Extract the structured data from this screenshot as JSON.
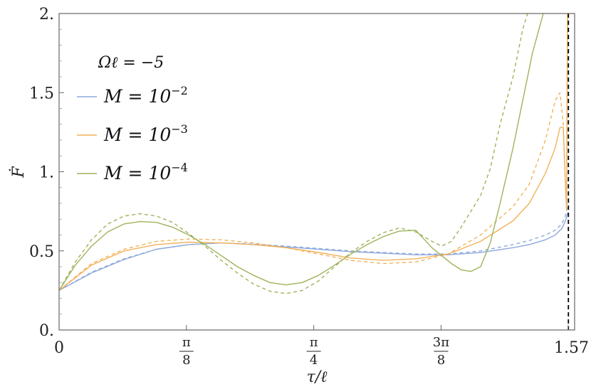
{
  "chart_data": {
    "type": "line",
    "xlabel": "τ/ℓ",
    "ylabel": "Ḟ",
    "xlim": [
      0,
      1.59
    ],
    "ylim": [
      0,
      2
    ],
    "xticks": [
      {
        "value": 0,
        "label": "0"
      },
      {
        "value": 0.3927,
        "label": "π/8",
        "num": "π",
        "den": "8"
      },
      {
        "value": 0.7854,
        "label": "π/4",
        "num": "π",
        "den": "4"
      },
      {
        "value": 1.1781,
        "label": "3π/8",
        "num": "3π",
        "den": "8"
      },
      {
        "value": 1.57,
        "label": "1.57"
      }
    ],
    "yticks": [
      {
        "value": 0,
        "label": "0."
      },
      {
        "value": 0.5,
        "label": "0.5"
      },
      {
        "value": 1,
        "label": "1."
      },
      {
        "value": 1.5,
        "label": "1.5"
      },
      {
        "value": 2,
        "label": "2."
      }
    ],
    "asymptote_x": 1.5708,
    "legend": {
      "title": "Ωℓ = −5",
      "placement": "top-left",
      "entries": [
        {
          "label": "M = 10⁻²",
          "base": "M = 10",
          "exp": "−2",
          "color": "#8FAADC"
        },
        {
          "label": "M = 10⁻³",
          "base": "M = 10",
          "exp": "−3",
          "color": "#F2B25C"
        },
        {
          "label": "M = 10⁻⁴",
          "base": "M = 10",
          "exp": "−4",
          "color": "#9DB35A"
        }
      ]
    },
    "series": [
      {
        "name": "M = 10⁻²",
        "style": "solid",
        "color": "#8FAADC",
        "x": [
          0,
          0.1,
          0.2,
          0.3,
          0.4,
          0.5,
          0.6,
          0.7,
          0.8,
          0.9,
          1.0,
          1.1,
          1.2,
          1.3,
          1.4,
          1.45,
          1.5,
          1.53,
          1.55,
          1.56,
          1.565,
          1.568
        ],
        "y": [
          0.25,
          0.36,
          0.445,
          0.51,
          0.54,
          0.55,
          0.54,
          0.525,
          0.51,
          0.495,
          0.485,
          0.475,
          0.475,
          0.49,
          0.52,
          0.54,
          0.57,
          0.6,
          0.64,
          0.68,
          0.71,
          0.74
        ]
      },
      {
        "name": "M = 10⁻² (dashed)",
        "style": "dashed",
        "color": "#8FAADC",
        "x": [
          0,
          0.1,
          0.2,
          0.3,
          0.4,
          0.5,
          0.6,
          0.7,
          0.8,
          0.9,
          1.0,
          1.1,
          1.2,
          1.3,
          1.4,
          1.45,
          1.5,
          1.53,
          1.55,
          1.56,
          1.565,
          1.568
        ],
        "y": [
          0.25,
          0.365,
          0.45,
          0.51,
          0.54,
          0.55,
          0.543,
          0.53,
          0.515,
          0.5,
          0.49,
          0.48,
          0.48,
          0.5,
          0.54,
          0.565,
          0.6,
          0.63,
          0.67,
          0.71,
          0.75,
          0.8
        ]
      },
      {
        "name": "M = 10⁻³",
        "style": "solid",
        "color": "#F2B25C",
        "x": [
          0,
          0.1,
          0.2,
          0.3,
          0.4,
          0.5,
          0.6,
          0.7,
          0.8,
          0.9,
          1.0,
          1.1,
          1.2,
          1.3,
          1.4,
          1.45,
          1.5,
          1.53,
          1.545,
          1.555,
          1.56,
          1.565,
          1.568
        ],
        "y": [
          0.25,
          0.41,
          0.5,
          0.54,
          0.555,
          0.55,
          0.54,
          0.52,
          0.49,
          0.455,
          0.44,
          0.45,
          0.48,
          0.56,
          0.69,
          0.8,
          0.99,
          1.15,
          1.28,
          1.28,
          1.0,
          0.76,
          2.0
        ]
      },
      {
        "name": "M = 10⁻³ (dashed)",
        "style": "dashed",
        "color": "#F2B25C",
        "x": [
          0,
          0.1,
          0.2,
          0.3,
          0.4,
          0.5,
          0.6,
          0.7,
          0.8,
          0.9,
          1.0,
          1.1,
          1.2,
          1.3,
          1.4,
          1.45,
          1.5,
          1.53,
          1.545,
          1.555,
          1.56,
          1.565,
          1.568
        ],
        "y": [
          0.25,
          0.42,
          0.51,
          0.56,
          0.575,
          0.57,
          0.55,
          0.52,
          0.48,
          0.44,
          0.42,
          0.43,
          0.48,
          0.6,
          0.78,
          0.92,
          1.2,
          1.45,
          1.5,
          1.3,
          1.0,
          0.8,
          2.0
        ]
      },
      {
        "name": "M = 10⁻⁴",
        "style": "solid",
        "color": "#9DB35A",
        "x": [
          0,
          0.05,
          0.1,
          0.15,
          0.2,
          0.25,
          0.3,
          0.35,
          0.4,
          0.45,
          0.5,
          0.55,
          0.6,
          0.65,
          0.7,
          0.75,
          0.8,
          0.85,
          0.9,
          0.95,
          1.0,
          1.05,
          1.1,
          1.15,
          1.18,
          1.21,
          1.24,
          1.27,
          1.3,
          1.33,
          1.36,
          1.4,
          1.43,
          1.46,
          1.5,
          1.53
        ],
        "y": [
          0.25,
          0.41,
          0.53,
          0.62,
          0.67,
          0.685,
          0.68,
          0.65,
          0.6,
          0.54,
          0.47,
          0.4,
          0.345,
          0.3,
          0.285,
          0.3,
          0.345,
          0.41,
          0.48,
          0.54,
          0.59,
          0.625,
          0.63,
          0.52,
          0.47,
          0.42,
          0.38,
          0.37,
          0.4,
          0.55,
          0.8,
          1.15,
          1.45,
          1.75,
          2.05,
          2.25
        ]
      },
      {
        "name": "M = 10⁻⁴ (dashed)",
        "style": "dashed",
        "color": "#9DB35A",
        "x": [
          0,
          0.05,
          0.1,
          0.15,
          0.2,
          0.25,
          0.3,
          0.35,
          0.4,
          0.45,
          0.5,
          0.55,
          0.6,
          0.65,
          0.7,
          0.75,
          0.8,
          0.85,
          0.9,
          0.95,
          1.0,
          1.05,
          1.1,
          1.15,
          1.18,
          1.21,
          1.24,
          1.27,
          1.3,
          1.33,
          1.36,
          1.4,
          1.43,
          1.46,
          1.5,
          1.53
        ],
        "y": [
          0.25,
          0.43,
          0.57,
          0.67,
          0.72,
          0.735,
          0.72,
          0.68,
          0.61,
          0.53,
          0.44,
          0.36,
          0.29,
          0.245,
          0.23,
          0.25,
          0.31,
          0.4,
          0.49,
          0.56,
          0.615,
          0.645,
          0.62,
          0.56,
          0.53,
          0.56,
          0.65,
          0.75,
          0.85,
          1.02,
          1.3,
          1.6,
          1.9,
          2.1,
          2.25,
          2.25
        ]
      }
    ]
  }
}
